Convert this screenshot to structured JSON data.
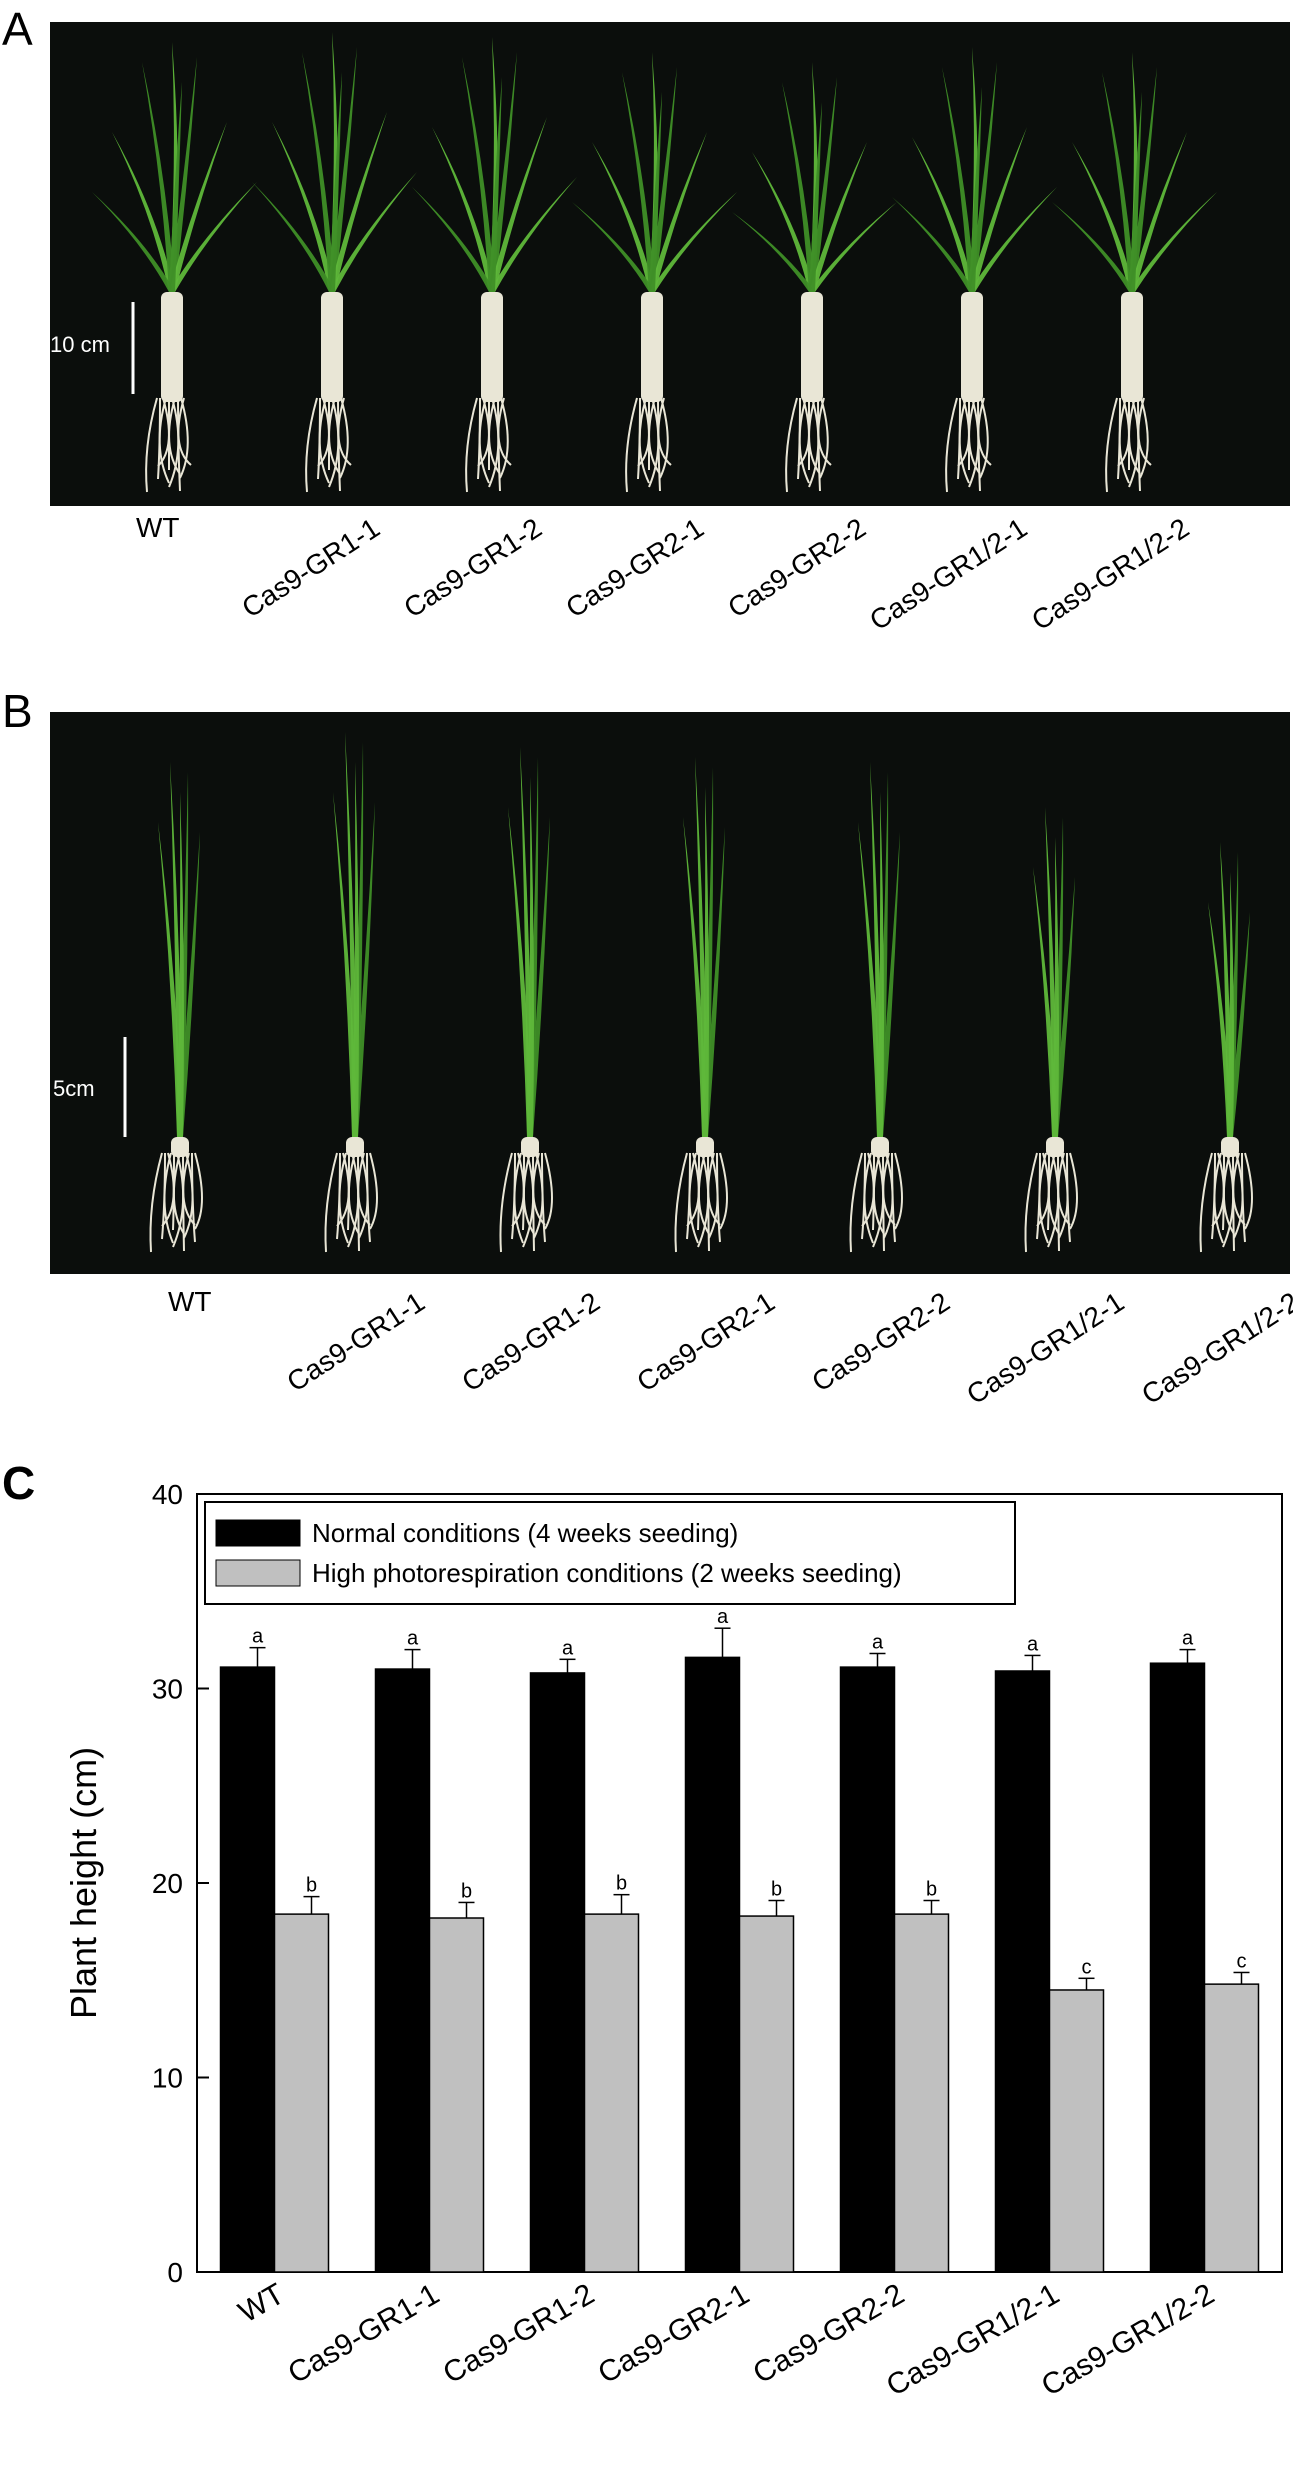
{
  "panels": {
    "a": {
      "letter": "A",
      "scale_label": "10 cm"
    },
    "b": {
      "letter": "B",
      "scale_label": "5cm"
    },
    "c": {
      "letter": "C"
    }
  },
  "genotypes": [
    "WT",
    "Cas9-GR1-1",
    "Cas9-GR1-2",
    "Cas9-GR2-1",
    "Cas9-GR2-2",
    "Cas9-GR1/2-1",
    "Cas9-GR1/2-2"
  ],
  "colors": {
    "photo_background": "#0b0e0c",
    "leaf": "#5fb83a",
    "leaf_dark": "#3f8f27",
    "root": "#e9e6d6",
    "bar_normal": "#000000",
    "bar_high": "#c0c0c0"
  },
  "chart_data": {
    "type": "bar",
    "categories": [
      "WT",
      "Cas9-GR1-1",
      "Cas9-GR1-2",
      "Cas9-GR2-1",
      "Cas9-GR2-2",
      "Cas9-GR1/2-1",
      "Cas9-GR1/2-2"
    ],
    "series": [
      {
        "name": "Normal conditions (4 weeks seeding)",
        "values": [
          31.1,
          31.0,
          30.8,
          31.6,
          31.1,
          30.9,
          31.3
        ],
        "errors": [
          1.0,
          1.0,
          0.7,
          1.5,
          0.7,
          0.8,
          0.7
        ],
        "letters": [
          "a",
          "a",
          "a",
          "a",
          "a",
          "a",
          "a"
        ],
        "color": "#000000"
      },
      {
        "name": "High photorespiration conditions (2 weeks seeding)",
        "values": [
          18.4,
          18.2,
          18.4,
          18.3,
          18.4,
          14.5,
          14.8
        ],
        "errors": [
          0.9,
          0.8,
          1.0,
          0.8,
          0.7,
          0.6,
          0.6
        ],
        "letters": [
          "b",
          "b",
          "b",
          "b",
          "b",
          "c",
          "c"
        ],
        "color": "#c0c0c0"
      }
    ],
    "xlabel": "",
    "ylabel": "Plant height (cm)",
    "ylim": [
      0,
      40
    ],
    "yticks": [
      "0",
      "10",
      "20",
      "30",
      "40"
    ],
    "grid": false,
    "legend_position": "top-left"
  }
}
